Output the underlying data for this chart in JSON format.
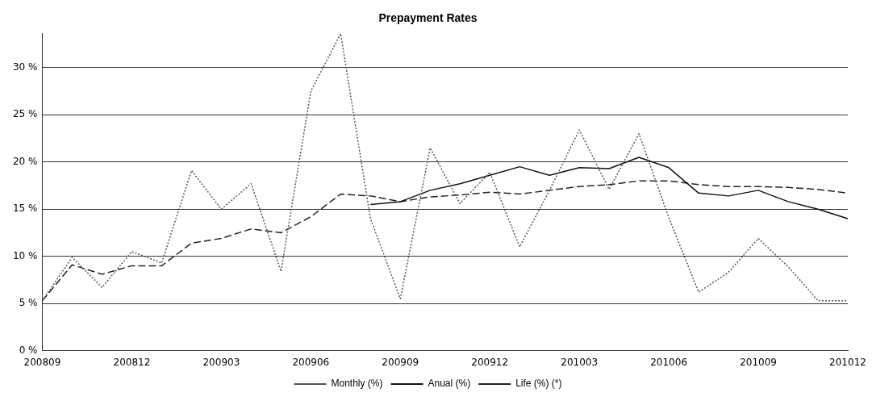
{
  "chart_data": {
    "type": "line",
    "title": "Prepayment Rates",
    "categories": [
      "200809",
      null,
      null,
      "200812",
      null,
      null,
      "200903",
      null,
      null,
      "200906",
      null,
      null,
      "200909",
      null,
      null,
      "200912",
      null,
      null,
      "201003",
      null,
      null,
      "201006",
      null,
      null,
      "201009",
      null,
      null,
      "201012"
    ],
    "series": [
      {
        "name": "Monthly (%)",
        "color": "#555555",
        "line_style": "dotted",
        "values": [
          5.3,
          9.9,
          6.7,
          10.5,
          9.3,
          19.1,
          15.0,
          17.7,
          8.4,
          27.5,
          33.6,
          14.0,
          5.5,
          21.5,
          15.6,
          18.9,
          11.0,
          17.0,
          23.4,
          17.1,
          23.0,
          14.1,
          6.2,
          8.3,
          11.9,
          8.9,
          5.3,
          5.3
        ]
      },
      {
        "name": "Anual (%)",
        "color": "#111111",
        "line_style": "solid",
        "values": [
          null,
          null,
          null,
          null,
          null,
          null,
          null,
          null,
          null,
          null,
          null,
          15.5,
          15.8,
          17.0,
          17.7,
          18.6,
          19.5,
          18.6,
          19.4,
          19.3,
          20.5,
          19.4,
          16.7,
          16.4,
          17.0,
          15.8,
          15.0,
          14.0
        ]
      },
      {
        "name": "Life (%) (*)",
        "color": "#222222",
        "line_style": "dashed",
        "values": [
          5.3,
          9.1,
          8.1,
          9.0,
          9.0,
          11.4,
          11.9,
          12.9,
          12.5,
          14.2,
          16.6,
          16.4,
          15.8,
          16.3,
          16.5,
          16.8,
          16.6,
          17.0,
          17.4,
          17.6,
          18.0,
          18.0,
          17.6,
          17.4,
          17.4,
          17.3,
          17.1,
          16.7
        ]
      }
    ],
    "ylim": [
      0,
      33.6
    ],
    "yticks": [
      {
        "value": 0,
        "label": "0 %"
      },
      {
        "value": 5,
        "label": "5 %"
      },
      {
        "value": 10,
        "label": "10 %"
      },
      {
        "value": 15,
        "label": "15 %"
      },
      {
        "value": 20,
        "label": "20 %"
      },
      {
        "value": 25,
        "label": "25 %"
      },
      {
        "value": 30,
        "label": "30 %"
      }
    ],
    "grid": "y",
    "legend": "bottom",
    "marker": "none"
  }
}
